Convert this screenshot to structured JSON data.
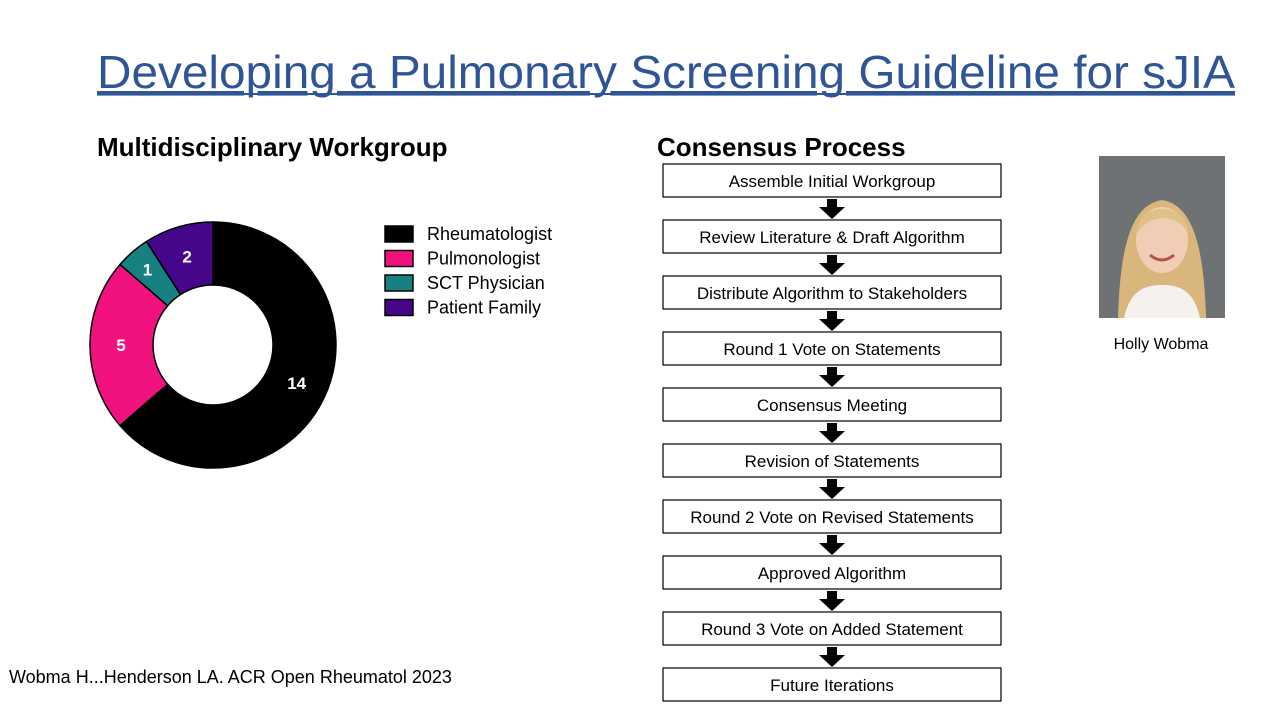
{
  "title": "Developing a Pulmonary Screening Guideline for sJIA",
  "chart_data": {
    "type": "donut",
    "title": "Multidisciplinary Workgroup",
    "categories": [
      "Rheumatologist",
      "Pulmonologist",
      "SCT Physician",
      "Patient Family"
    ],
    "values": [
      14,
      5,
      1,
      2
    ],
    "colors": [
      "#000000",
      "#f2127f",
      "#178080",
      "#46068a"
    ],
    "label_colors": [
      "#ffffff",
      "#ffffff",
      "#ffffff",
      "#ffffff"
    ],
    "legend": "right"
  },
  "consensus": {
    "title": "Consensus Process",
    "steps": [
      "Assemble Initial Workgroup",
      "Review Literature & Draft Algorithm",
      "Distribute Algorithm to Stakeholders",
      "Round 1 Vote on Statements",
      "Consensus Meeting",
      "Revision of Statements",
      "Round 2 Vote on Revised Statements",
      "Approved Algorithm",
      "Round 3 Vote on Added Statement",
      "Future Iterations"
    ]
  },
  "photo_caption": "Holly Wobma",
  "citation": "Wobma H...Henderson LA. ACR Open Rheumatol 2023"
}
